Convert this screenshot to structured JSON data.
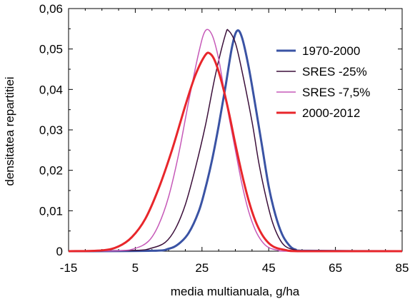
{
  "chart_data": {
    "type": "line",
    "xlabel": "media multianuala, g/ha",
    "ylabel": "densitatea repartitiei",
    "xlim": [
      -15,
      85
    ],
    "ylim": [
      0,
      0.06
    ],
    "x_ticks": [
      -15,
      5,
      25,
      45,
      65,
      85
    ],
    "x_tick_labels": [
      "-15",
      "5",
      "25",
      "45",
      "65",
      "85"
    ],
    "y_ticks": [
      0,
      0.01,
      0.02,
      0.03,
      0.04,
      0.05,
      0.06
    ],
    "y_tick_labels": [
      "0",
      "0,01",
      "0,02",
      "0,03",
      "0,04",
      "0,05",
      "0,06"
    ],
    "legend_position": "top-right",
    "grid": false,
    "series": [
      {
        "name": "1970-2000",
        "color": "#3a53a4",
        "width": 3,
        "points": [
          [
            -15,
            0
          ],
          [
            10,
            0.0001
          ],
          [
            15,
            0.0006
          ],
          [
            18,
            0.0018
          ],
          [
            21,
            0.0045
          ],
          [
            24,
            0.0098
          ],
          [
            26,
            0.0155
          ],
          [
            28,
            0.0225
          ],
          [
            30,
            0.031
          ],
          [
            32,
            0.0405
          ],
          [
            34,
            0.0505
          ],
          [
            35.5,
            0.0545
          ],
          [
            37,
            0.0528
          ],
          [
            39,
            0.0455
          ],
          [
            41,
            0.036
          ],
          [
            43,
            0.026
          ],
          [
            45,
            0.016
          ],
          [
            47,
            0.009
          ],
          [
            49,
            0.0042
          ],
          [
            51,
            0.0016
          ],
          [
            53,
            0.0004
          ],
          [
            57,
            0.0001
          ],
          [
            85,
            0
          ]
        ]
      },
      {
        "name": "SRES -25%",
        "color": "#3b0f3a",
        "width": 1.5,
        "points": [
          [
            -15,
            0
          ],
          [
            5,
            0.0002
          ],
          [
            10,
            0.0008
          ],
          [
            14,
            0.0022
          ],
          [
            17,
            0.0055
          ],
          [
            20,
            0.0115
          ],
          [
            23,
            0.0205
          ],
          [
            26,
            0.031
          ],
          [
            29,
            0.0435
          ],
          [
            32,
            0.0535
          ],
          [
            33,
            0.0545
          ],
          [
            35,
            0.0515
          ],
          [
            37,
            0.0445
          ],
          [
            40,
            0.032
          ],
          [
            42,
            0.022
          ],
          [
            44,
            0.014
          ],
          [
            46,
            0.0075
          ],
          [
            48,
            0.0034
          ],
          [
            50,
            0.0012
          ],
          [
            53,
            0.0003
          ],
          [
            57,
            0
          ],
          [
            85,
            0
          ]
        ]
      },
      {
        "name": "SRES -7,5%",
        "color": "#c659b8",
        "width": 1.5,
        "points": [
          [
            -15,
            0
          ],
          [
            0,
            0.0001
          ],
          [
            5,
            0.0007
          ],
          [
            9,
            0.0025
          ],
          [
            12,
            0.0065
          ],
          [
            15,
            0.0135
          ],
          [
            18,
            0.024
          ],
          [
            21,
            0.037
          ],
          [
            24,
            0.049
          ],
          [
            26,
            0.0545
          ],
          [
            28,
            0.0535
          ],
          [
            30,
            0.0475
          ],
          [
            32,
            0.038
          ],
          [
            35,
            0.025
          ],
          [
            37,
            0.0165
          ],
          [
            39,
            0.0098
          ],
          [
            41,
            0.0052
          ],
          [
            43,
            0.0024
          ],
          [
            45,
            0.0009
          ],
          [
            48,
            0.0002
          ],
          [
            52,
            0
          ],
          [
            85,
            0
          ]
        ]
      },
      {
        "name": "2000-2012",
        "color": "#e8262b",
        "width": 3,
        "points": [
          [
            -15,
            0
          ],
          [
            -5,
            0.0002
          ],
          [
            0,
            0.0012
          ],
          [
            4,
            0.0035
          ],
          [
            8,
            0.008
          ],
          [
            12,
            0.0155
          ],
          [
            16,
            0.025
          ],
          [
            20,
            0.036
          ],
          [
            23,
            0.0435
          ],
          [
            26,
            0.0485
          ],
          [
            27.5,
            0.0488
          ],
          [
            29,
            0.0468
          ],
          [
            31,
            0.0415
          ],
          [
            33,
            0.0345
          ],
          [
            35,
            0.0265
          ],
          [
            37,
            0.019
          ],
          [
            39,
            0.0125
          ],
          [
            41,
            0.0075
          ],
          [
            43,
            0.0041
          ],
          [
            45,
            0.002
          ],
          [
            47,
            0.0009
          ],
          [
            50,
            0.0003
          ],
          [
            55,
            0
          ],
          [
            85,
            0
          ]
        ]
      }
    ]
  }
}
